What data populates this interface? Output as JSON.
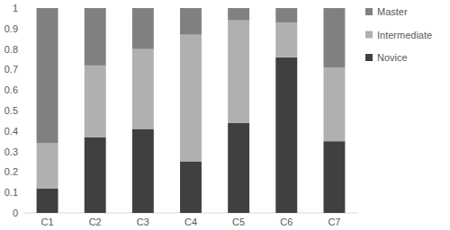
{
  "chart_data": {
    "type": "bar",
    "stacked": true,
    "legend": "right",
    "categories": [
      "C1",
      "C2",
      "C3",
      "C4",
      "C5",
      "C6",
      "C7"
    ],
    "series": [
      {
        "name": "Novice",
        "color": "#404040",
        "values": [
          0.12,
          0.37,
          0.41,
          0.25,
          0.44,
          0.76,
          0.35
        ]
      },
      {
        "name": "Intermediate",
        "color": "#b0b0b0",
        "values": [
          0.22,
          0.35,
          0.39,
          0.62,
          0.5,
          0.17,
          0.36
        ]
      },
      {
        "name": "Master",
        "color": "#808080",
        "values": [
          0.66,
          0.28,
          0.2,
          0.13,
          0.06,
          0.07,
          0.29
        ]
      }
    ],
    "ylim": [
      0,
      1
    ],
    "yticks": [
      0,
      0.1,
      0.2,
      0.3,
      0.4,
      0.5,
      0.6,
      0.7,
      0.8,
      0.9,
      1
    ]
  }
}
